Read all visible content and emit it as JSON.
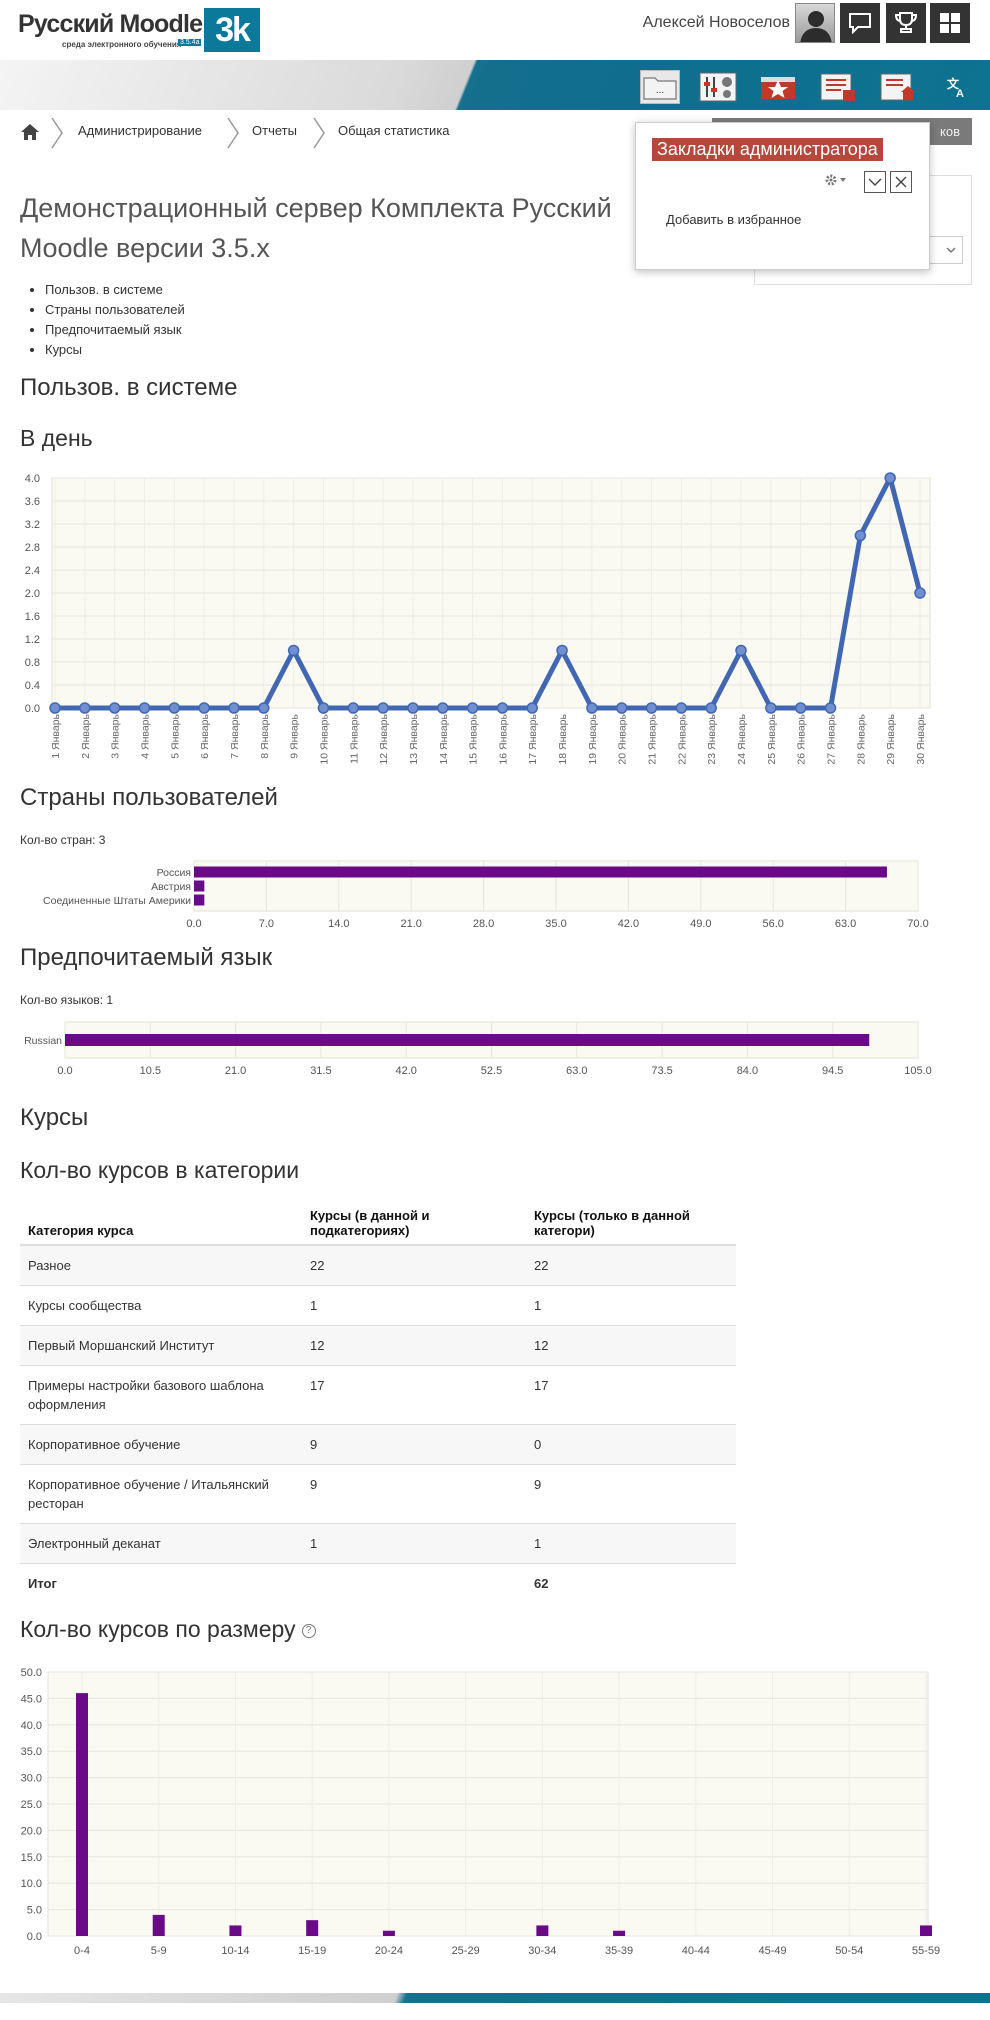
{
  "brand": {
    "name": "Русский Moodle",
    "mark": "3k",
    "tagline": "среда электронного обучения",
    "version_badge": "3.5.4a"
  },
  "header": {
    "username": "Алексей Новоселов",
    "buttons": [
      "messages-icon",
      "trophy-icon",
      "grid-icon"
    ]
  },
  "nav_icons": [
    "folder-icon",
    "settings-sliders-icon",
    "star-badge-icon",
    "report-list-icon",
    "dashboard-home-icon",
    "translate-icon"
  ],
  "breadcrumb": {
    "items": [
      "Администрирование",
      "Отчеты",
      "Общая статистика"
    ]
  },
  "blocks_button": {
    "label": "ков"
  },
  "popup": {
    "title": "Закладки администратора",
    "link": "Добавить в избранное"
  },
  "page": {
    "title": "Демонстрационный сервер Комплекта Русский Moodle версии 3.5.x",
    "toc": [
      "Пользов. в системе",
      "Страны пользователей",
      "Предпочитаемый язык",
      "Курсы"
    ]
  },
  "sections": {
    "users": {
      "heading": "Пользов. в системе",
      "subheading": "В день"
    },
    "countries": {
      "heading": "Страны пользователей",
      "count_label": "Кол-во стран: 3"
    },
    "languages": {
      "heading": "Предпочитаемый язык",
      "count_label": "Кол-во языков: 1"
    },
    "courses": {
      "heading": "Курсы",
      "by_category": "Кол-во курсов в категории",
      "by_size": "Кол-во курсов по размеру"
    }
  },
  "colors": {
    "line": "#4267b2",
    "bar": "#6a0a87",
    "plot_bg": "#fafaf3",
    "popup_title_bg": "#b5483b",
    "accent": "#0b7a9a"
  },
  "table": {
    "headers": [
      "Категория курса",
      "Курсы (в данной и подкатегориях)",
      "Курсы (только в данной категори)"
    ],
    "rows": [
      [
        "Разное",
        "22",
        "22"
      ],
      [
        "Курсы сообщества",
        "1",
        "1"
      ],
      [
        "Первый Моршанский Институт",
        "12",
        "12"
      ],
      [
        "Примеры настройки базового шаблона оформления",
        "17",
        "17"
      ],
      [
        "Корпоративное обучение",
        "9",
        "0"
      ],
      [
        "Корпоративное обучение / Итальянский ресторан",
        "9",
        "9"
      ],
      [
        "Электронный деканат",
        "1",
        "1"
      ]
    ],
    "total": [
      "Итог",
      "",
      "62"
    ]
  },
  "chart_data": [
    {
      "type": "line",
      "x": [
        "1 Январь",
        "2 Январь",
        "3 Январь",
        "4 Январь",
        "5 Январь",
        "6 Январь",
        "7 Январь",
        "8 Январь",
        "9 Январь",
        "10 Январь",
        "11 Январь",
        "12 Январь",
        "13 Январь",
        "14 Январь",
        "15 Январь",
        "16 Январь",
        "17 Январь",
        "18 Январь",
        "19 Январь",
        "20 Январь",
        "21 Январь",
        "22 Январь",
        "23 Январь",
        "24 Январь",
        "25 Январь",
        "26 Январь",
        "27 Январь",
        "28 Январь",
        "29 Январь",
        "30 Январь"
      ],
      "values": [
        0,
        0,
        0,
        0,
        0,
        0,
        0,
        0,
        1,
        0,
        0,
        0,
        0,
        0,
        0,
        0,
        0,
        1,
        0,
        0,
        0,
        0,
        0,
        1,
        0,
        0,
        0,
        3,
        4,
        2
      ],
      "ylim": [
        0,
        4
      ],
      "yticks": [
        "0.0",
        "0.4",
        "0.8",
        "1.2",
        "1.6",
        "2.0",
        "2.4",
        "2.8",
        "3.2",
        "3.6",
        "4.0"
      ],
      "grid": true
    },
    {
      "type": "bar",
      "orientation": "horizontal",
      "categories": [
        "Россия",
        "Австрия",
        "Соединенные Штаты Америки"
      ],
      "values": [
        67,
        1,
        1
      ],
      "xlim": [
        0,
        70
      ],
      "xticks": [
        "0.0",
        "7.0",
        "14.0",
        "21.0",
        "28.0",
        "35.0",
        "42.0",
        "49.0",
        "56.0",
        "63.0",
        "70.0"
      ],
      "grid": true
    },
    {
      "type": "bar",
      "orientation": "horizontal",
      "categories": [
        "Russian"
      ],
      "values": [
        99
      ],
      "xlim": [
        0,
        105
      ],
      "xticks": [
        "0.0",
        "10.5",
        "21.0",
        "31.5",
        "42.0",
        "52.5",
        "63.0",
        "73.5",
        "84.0",
        "94.5",
        "105.0"
      ],
      "grid": true
    },
    {
      "type": "bar",
      "categories": [
        "0-4",
        "5-9",
        "10-14",
        "15-19",
        "20-24",
        "25-29",
        "30-34",
        "35-39",
        "40-44",
        "45-49",
        "50-54",
        "55-59"
      ],
      "values": [
        46,
        4,
        2,
        3,
        1,
        0,
        2,
        1,
        0,
        0,
        0,
        2
      ],
      "ylim": [
        0,
        50
      ],
      "yticks": [
        "0.0",
        "5.0",
        "10.0",
        "15.0",
        "20.0",
        "25.0",
        "30.0",
        "35.0",
        "40.0",
        "45.0",
        "50.0"
      ],
      "grid": true
    }
  ]
}
